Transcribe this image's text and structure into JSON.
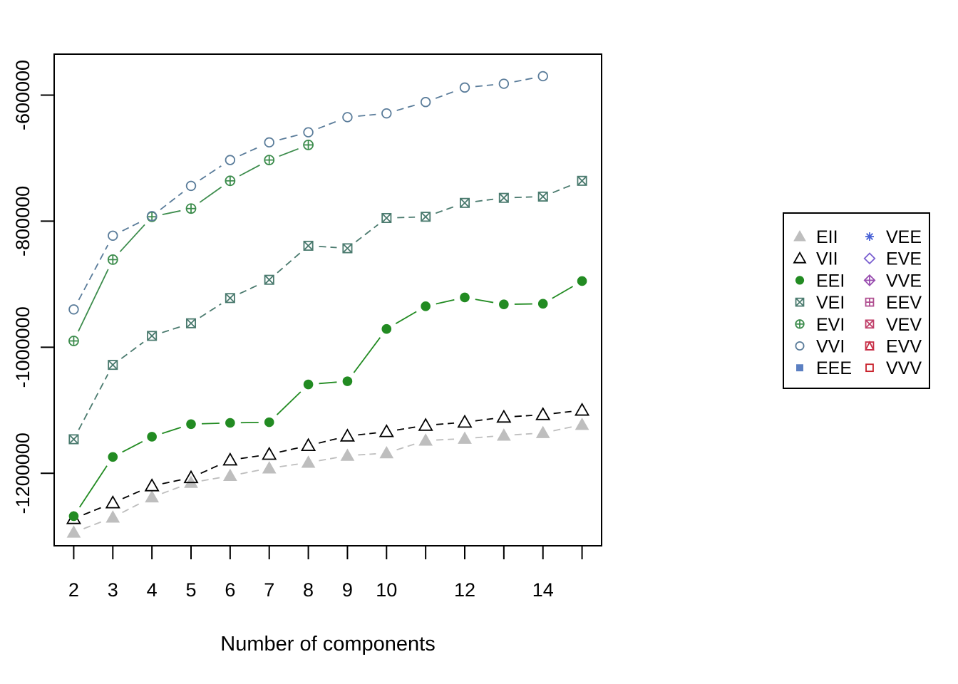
{
  "chart_data": {
    "type": "line",
    "title": "",
    "xlabel": "Number of components",
    "ylabel": "",
    "xlim": [
      1.5,
      15.5
    ],
    "ylim": [
      -1315000,
      -535000
    ],
    "x_ticks": [
      2,
      3,
      4,
      5,
      6,
      7,
      8,
      9,
      10,
      12,
      14
    ],
    "x_tick_labels": [
      "2",
      "3",
      "4",
      "5",
      "6",
      "7",
      "8",
      "9",
      "10",
      "12",
      "14"
    ],
    "y_ticks": [
      -1200000,
      -1000000,
      -800000,
      -600000
    ],
    "y_tick_labels": [
      "-1200000",
      "-1000000",
      "-800000",
      "-600000"
    ],
    "grid": false,
    "legend_position": "right",
    "series": [
      {
        "name": "EII",
        "color": "#BEBEBE",
        "marker": "filled-triangle",
        "lty": "dashed",
        "x": [
          2,
          3,
          4,
          5,
          6,
          7,
          8,
          9,
          10,
          11,
          12,
          13,
          14,
          15
        ],
        "y": [
          -1294000,
          -1270000,
          -1238000,
          -1215000,
          -1204000,
          -1192000,
          -1183000,
          -1172000,
          -1168000,
          -1148000,
          -1145000,
          -1140000,
          -1136000,
          -1123000
        ]
      },
      {
        "name": "VII",
        "color": "#000000",
        "marker": "open-triangle",
        "lty": "dashed",
        "x": [
          2,
          3,
          4,
          5,
          6,
          7,
          8,
          9,
          10,
          11,
          12,
          13,
          14,
          15
        ],
        "y": [
          -1272000,
          -1247000,
          -1220000,
          -1207000,
          -1179000,
          -1170000,
          -1156000,
          -1141000,
          -1134000,
          -1124000,
          -1119000,
          -1111000,
          -1107000,
          -1100000
        ]
      },
      {
        "name": "EEI",
        "color": "#228B22",
        "marker": "filled-circle",
        "lty": "solid",
        "x": [
          2,
          3,
          4,
          5,
          6,
          7,
          8,
          9,
          10,
          11,
          12,
          13,
          14,
          15
        ],
        "y": [
          -1268000,
          -1174000,
          -1142000,
          -1122000,
          -1120000,
          -1119000,
          -1059000,
          -1054000,
          -971000,
          -935000,
          -921000,
          -932000,
          -931000,
          -895000
        ]
      },
      {
        "name": "VEI",
        "color": "#4A7A6E",
        "marker": "box-x",
        "lty": "dashed",
        "x": [
          2,
          3,
          4,
          5,
          6,
          7,
          8,
          9,
          10,
          11,
          12,
          13,
          14,
          15
        ],
        "y": [
          -1146000,
          -1028000,
          -982000,
          -962000,
          -922000,
          -893000,
          -839000,
          -843000,
          -795000,
          -793000,
          -771000,
          -763000,
          -761000,
          -736000
        ]
      },
      {
        "name": "EVI",
        "color": "#3C8C4C",
        "marker": "circle-plus",
        "lty": "solid",
        "x": [
          2,
          3,
          4,
          5,
          6,
          7,
          8
        ],
        "y": [
          -990000,
          -861000,
          -793000,
          -780000,
          -736000,
          -703000,
          -679000
        ]
      },
      {
        "name": "VVI",
        "color": "#5A7C9A",
        "marker": "open-circle",
        "lty": "dashed",
        "x": [
          2,
          3,
          4,
          5,
          6,
          7,
          8,
          9,
          10,
          11,
          12,
          13,
          14
        ],
        "y": [
          -940000,
          -823000,
          -792000,
          -744000,
          -703000,
          -675000,
          -659000,
          -635000,
          -629000,
          -611000,
          -588000,
          -582000,
          -570000
        ]
      }
    ],
    "legend": {
      "columns": [
        [
          {
            "label": "EII",
            "color": "#BEBEBE",
            "marker": "filled-triangle"
          },
          {
            "label": "VII",
            "color": "#000000",
            "marker": "open-triangle"
          },
          {
            "label": "EEI",
            "color": "#228B22",
            "marker": "filled-circle"
          },
          {
            "label": "VEI",
            "color": "#4A7A6E",
            "marker": "box-x"
          },
          {
            "label": "EVI",
            "color": "#3C8C4C",
            "marker": "circle-plus"
          },
          {
            "label": "VVI",
            "color": "#5A7C9A",
            "marker": "open-circle"
          },
          {
            "label": "EEE",
            "color": "#5B7FC2",
            "marker": "filled-square"
          }
        ],
        [
          {
            "label": "VEE",
            "color": "#4A63D6",
            "marker": "asterisk"
          },
          {
            "label": "EVE",
            "color": "#7A5FD0",
            "marker": "open-diamond"
          },
          {
            "label": "VVE",
            "color": "#9A4FB0",
            "marker": "diamond-plus"
          },
          {
            "label": "EEV",
            "color": "#B04F90",
            "marker": "square-plus"
          },
          {
            "label": "VEV",
            "color": "#C0406A",
            "marker": "box-x"
          },
          {
            "label": "EVV",
            "color": "#C83048",
            "marker": "triangle-in-square"
          },
          {
            "label": "VVV",
            "color": "#C8202A",
            "marker": "open-square"
          }
        ]
      ]
    }
  }
}
